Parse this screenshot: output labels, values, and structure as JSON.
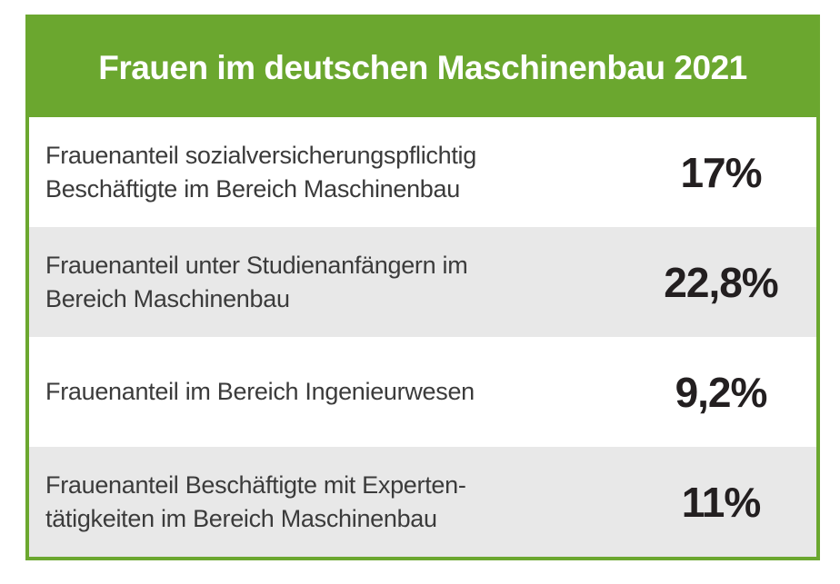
{
  "infographic": {
    "title": "Frauen im deutschen Maschinenbau 2021",
    "rows": [
      {
        "lines": [
          "Frauenanteil sozialversicherungspflichtig",
          "Beschäftigte im Bereich Maschinenbau"
        ],
        "value": "17%"
      },
      {
        "lines": [
          "Frauenanteil unter Studienanfängern im",
          "Bereich Maschinenbau"
        ],
        "value": "22,8%"
      },
      {
        "lines": [
          "Frauenanteil im Bereich Ingenieurwesen"
        ],
        "value": "9,2%"
      },
      {
        "lines": [
          "Frauenanteil Beschäftigte mit Experten-",
          "tätigkeiten im Bereich Maschinenbau"
        ],
        "value": "11%"
      }
    ],
    "colors": {
      "accent_green": "#6BA72F",
      "row_alt_gray": "#E8E8E8",
      "row_white": "#FFFFFF",
      "label_text": "#3B3B3B",
      "value_text": "#231F20",
      "title_text": "#FFFFFF"
    }
  },
  "chart_data": {
    "type": "table",
    "title": "Frauen im deutschen Maschinenbau 2021",
    "categories": [
      "Frauenanteil sozialversicherungspflichtig Beschäftigte im Bereich Maschinenbau",
      "Frauenanteil unter Studienanfängern im Bereich Maschinenbau",
      "Frauenanteil im Bereich Ingenieurwesen",
      "Frauenanteil Beschäftigte mit Expertentätigkeiten im Bereich Maschinenbau"
    ],
    "values": [
      17,
      22.8,
      9.2,
      11
    ],
    "value_labels": [
      "17%",
      "22,8%",
      "9,2%",
      "11%"
    ],
    "unit": "percent",
    "legend": "none",
    "grid": "off"
  }
}
